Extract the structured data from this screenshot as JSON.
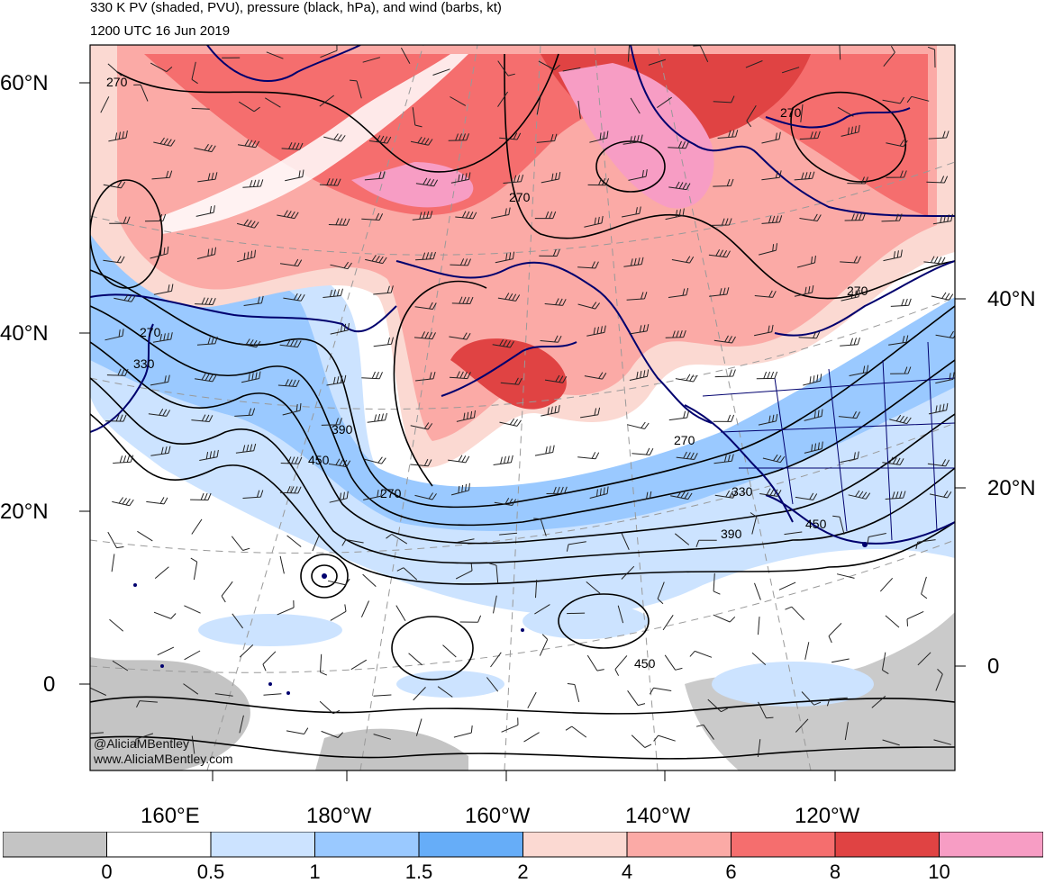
{
  "header": {
    "title": "330 K PV (shaded, PVU), pressure (black, hPa), and wind (barbs, kt)",
    "valid_time": "1200 UTC 16 Jun 2019"
  },
  "axes": {
    "lat_labels_left": [
      "60°N",
      "40°N",
      "20°N",
      "0"
    ],
    "lat_labels_right": [
      "40°N",
      "20°N",
      "0"
    ],
    "lon_labels": [
      "160°E",
      "180°W",
      "160°W",
      "140°W",
      "120°W"
    ]
  },
  "contour_labels": [
    "270",
    "270",
    "270",
    "270",
    "270",
    "270",
    "270",
    "330",
    "330",
    "390",
    "390",
    "450",
    "450",
    "450"
  ],
  "colorbar": {
    "colors": [
      "#c4c4c4",
      "#ffffff",
      "#cce3ff",
      "#9ac9ff",
      "#66adf8",
      "#fbd9d2",
      "#fbaaa6",
      "#f56e6e",
      "#e04343",
      "#f79dc4"
    ],
    "tick_labels": [
      "0",
      "0.5",
      "1",
      "1.5",
      "2",
      "4",
      "6",
      "8",
      "10"
    ]
  },
  "credit": {
    "line1": "@AliciaMBentley",
    "line2": "www.AliciaMBentley.com"
  },
  "colors": {
    "coast": "#00006e",
    "contour": "#000000",
    "grid": "#999999"
  }
}
